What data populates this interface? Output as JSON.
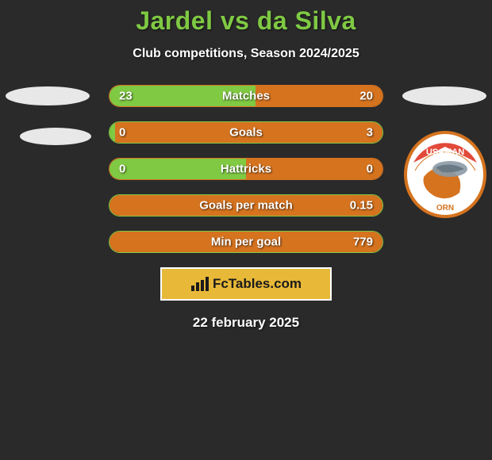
{
  "title": "Jardel vs da Silva",
  "subtitle": "Club competitions, Season 2024/2025",
  "date": "22 february 2025",
  "brand": "FcTables.com",
  "colors": {
    "background": "#2a2a2a",
    "title": "#7fc943",
    "text": "#ffffff",
    "brand_bg": "#e8b838",
    "brand_border": "#ffffff",
    "ellipse": "#e8e8e8"
  },
  "stats": [
    {
      "label": "Matches",
      "left_value": "23",
      "right_value": "20",
      "left_pct": 53.5,
      "right_pct": 46.5,
      "left_color": "#7fc943",
      "right_color": "#d5731f",
      "border_color": "#d5731f"
    },
    {
      "label": "Goals",
      "left_value": "0",
      "right_value": "3",
      "left_pct": 2,
      "right_pct": 98,
      "left_color": "#7fc943",
      "right_color": "#d5731f",
      "border_color": "#7fc943"
    },
    {
      "label": "Hattricks",
      "left_value": "0",
      "right_value": "0",
      "left_pct": 50,
      "right_pct": 50,
      "left_color": "#7fc943",
      "right_color": "#d5731f",
      "border_color": "#d5731f"
    },
    {
      "label": "Goals per match",
      "left_value": "",
      "right_value": "0.15",
      "left_pct": 0,
      "right_pct": 100,
      "left_color": "#7fc943",
      "right_color": "#d5731f",
      "border_color": "#7fc943"
    },
    {
      "label": "Min per goal",
      "left_value": "",
      "right_value": "779",
      "left_pct": 0,
      "right_pct": 100,
      "left_color": "#7fc943",
      "right_color": "#d5731f",
      "border_color": "#7fc943"
    }
  ],
  "logo": {
    "outer_ring": "#d5731f",
    "inner_bg": "#ffffff",
    "accent_top": "#e24a3a",
    "island": "#d5731f",
    "text_top": "USAMAN",
    "text_bottom": "ORN"
  }
}
